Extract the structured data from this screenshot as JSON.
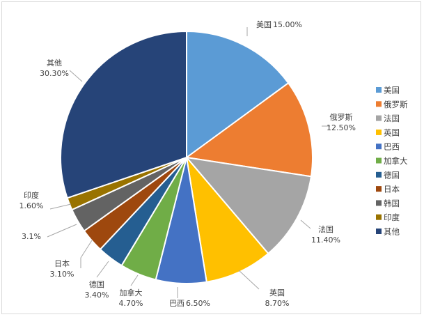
{
  "chart_data": {
    "type": "pie",
    "start_angle_deg": 0,
    "direction": "clockwise",
    "legend_position": "right",
    "slices": [
      {
        "name": "美国",
        "value": 15.0,
        "label": "15.00%",
        "color": "#5b9bd5"
      },
      {
        "name": "俄罗斯",
        "value": 12.5,
        "label": "12.50%",
        "color": "#ed7d31"
      },
      {
        "name": "法国",
        "value": 11.4,
        "label": "11.40%",
        "color": "#a5a5a5"
      },
      {
        "name": "英国",
        "value": 8.7,
        "label": "8.70%",
        "color": "#ffc000"
      },
      {
        "name": "巴西",
        "value": 6.5,
        "label": "6.50%",
        "color": "#4472c4"
      },
      {
        "name": "加拿大",
        "value": 4.7,
        "label": "4.70%",
        "color": "#70ad47"
      },
      {
        "name": "德国",
        "value": 3.4,
        "label": "3.40%",
        "color": "#255e91"
      },
      {
        "name": "日本",
        "value": 3.1,
        "label": "3.10%",
        "color": "#9e480e"
      },
      {
        "name": "韩国",
        "value": 3.1,
        "label": "3.1%",
        "color": "#636363"
      },
      {
        "name": "印度",
        "value": 1.6,
        "label": "1.60%",
        "color": "#997300"
      },
      {
        "name": "其他",
        "value": 30.3,
        "label": "30.30%",
        "color": "#264478"
      }
    ]
  }
}
